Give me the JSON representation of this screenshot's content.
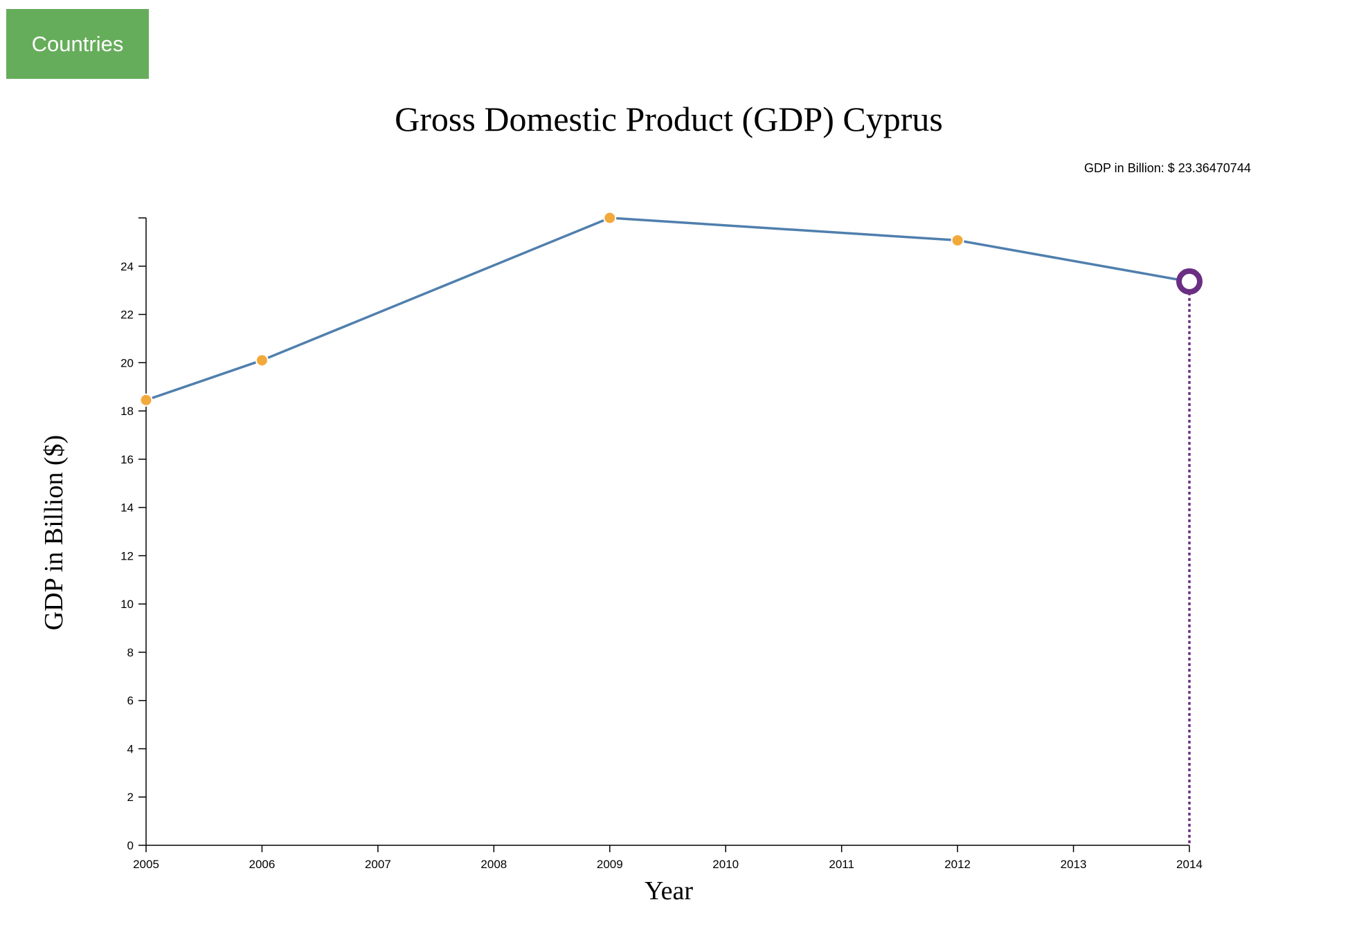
{
  "nav": {
    "countries_label": "Countries"
  },
  "tooltip": {
    "text": "GDP in Billion: $ 23.36470744"
  },
  "colors": {
    "button": "#66ad5b",
    "line": "#4f7fad",
    "point": "#f2a93b",
    "highlight": "#6a2e82"
  },
  "chart_data": {
    "type": "line",
    "title": "Gross Domestic Product (GDP) Cyprus",
    "xlabel": "Year",
    "ylabel": "GDP in Billion ($)",
    "x": [
      2005,
      2006,
      2009,
      2012,
      2014
    ],
    "series": [
      {
        "values": [
          18.45,
          20.1,
          26.0,
          25.07,
          23.36
        ]
      }
    ],
    "highlighted_point": {
      "x": 2014,
      "y": 23.36470744
    },
    "xlim": [
      2005,
      2014
    ],
    "ylim": [
      0,
      26
    ],
    "xticks": [
      2005,
      2006,
      2007,
      2008,
      2009,
      2010,
      2011,
      2012,
      2013,
      2014
    ],
    "yticks": [
      0,
      2,
      4,
      6,
      8,
      10,
      12,
      14,
      16,
      18,
      20,
      22,
      24
    ],
    "grid": false,
    "legend": "none"
  }
}
